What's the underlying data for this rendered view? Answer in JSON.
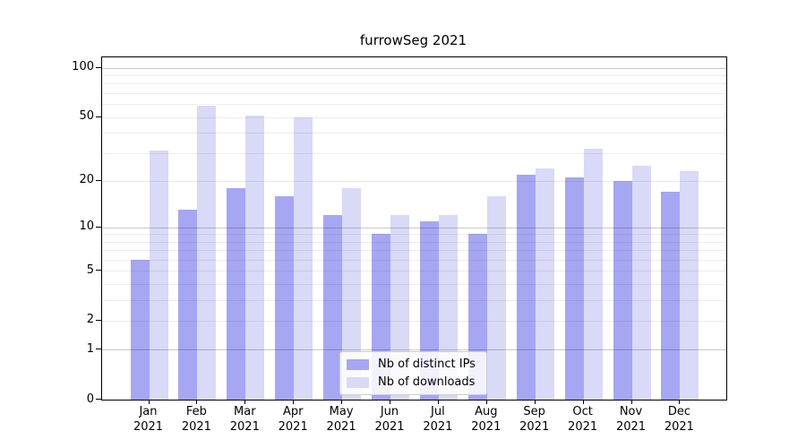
{
  "title": "furrowSeg 2021",
  "colors": {
    "distinct_ips_bar": "#a6a6f2",
    "downloads_bar": "#d9d9f8",
    "axis_spine": "#000000",
    "major_gridline": "#c9c9c9",
    "minor_gridline": "#ededed",
    "background": "#ffffff"
  },
  "legend": {
    "entries": [
      "Nb of distinct IPs",
      "Nb of downloads"
    ],
    "position": "lower center"
  },
  "chart_data": {
    "type": "bar",
    "title": "furrowSeg 2021",
    "categories": [
      "Jan",
      "Feb",
      "Mar",
      "Apr",
      "May",
      "Jun",
      "Jul",
      "Aug",
      "Sep",
      "Oct",
      "Nov",
      "Dec"
    ],
    "x_tick_year_line": "2021",
    "series": [
      {
        "name": "Nb of distinct IPs",
        "color": "#a6a6f2",
        "values": [
          6,
          13,
          18,
          16,
          12,
          9,
          11,
          9,
          22,
          21,
          20,
          17
        ]
      },
      {
        "name": "Nb of downloads",
        "color": "#d9d9f8",
        "values": [
          31,
          59,
          51,
          50,
          18,
          12,
          12,
          16,
          24,
          32,
          25,
          23
        ]
      }
    ],
    "xlabel": "",
    "ylabel": "",
    "yscale": "log1p",
    "ylim": [
      0,
      116
    ],
    "y_tick_values": [
      100,
      50,
      20,
      10,
      5,
      2,
      1,
      0
    ],
    "y_tick_labels": [
      "100",
      "50",
      "20",
      "10",
      "5",
      "2",
      "1",
      "0"
    ],
    "y_major_gridlines": [
      1,
      10,
      100
    ],
    "y_minor_gridlines": [
      2,
      3,
      4,
      5,
      6,
      7,
      8,
      9,
      20,
      30,
      40,
      50,
      60,
      70,
      80,
      90
    ],
    "grid": "on, drawn over bars",
    "legend_position": "lower center"
  }
}
